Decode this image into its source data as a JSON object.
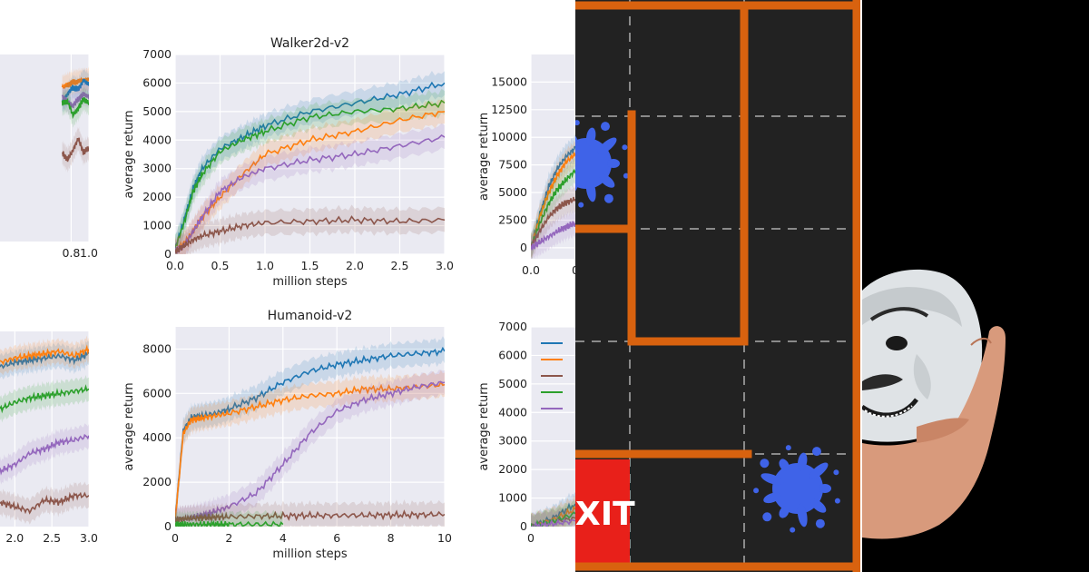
{
  "chart_data": [
    {
      "type": "line",
      "title": "",
      "xlabel": "",
      "ylabel": "",
      "xlim": [
        0,
        1.0
      ],
      "ylim": [
        -1000,
        7000
      ],
      "x_tick_labels": [
        "0.8",
        "1.0"
      ],
      "y_tick_labels": [],
      "grid": true,
      "series": [
        {
          "color": "#ff7f0e",
          "values": [
            5600,
            5700,
            5800,
            5850,
            5900,
            5900
          ]
        },
        {
          "color": "#1f77b4",
          "values": [
            5000,
            5300,
            5600,
            5500,
            5900,
            5700
          ]
        },
        {
          "color": "#9467bd",
          "values": [
            5200,
            5000,
            4800,
            5100,
            5300,
            5200
          ]
        },
        {
          "color": "#2ca02c",
          "values": [
            4900,
            5000,
            4400,
            4700,
            5100,
            4900
          ]
        },
        {
          "color": "#8c564b",
          "values": [
            2800,
            2500,
            2900,
            3400,
            2800,
            3000
          ]
        }
      ],
      "x": [
        0.7,
        0.76,
        0.82,
        0.88,
        0.94,
        1.0
      ]
    },
    {
      "type": "line",
      "title": "Walker2d-v2",
      "xlabel": "million steps",
      "ylabel": "average return",
      "xlim": [
        0,
        3.0
      ],
      "ylim": [
        0,
        7000
      ],
      "x_tick_labels": [
        "0.0",
        "0.5",
        "1.0",
        "1.5",
        "2.0",
        "2.5",
        "3.0"
      ],
      "y_tick_labels": [
        "0",
        "1000",
        "2000",
        "3000",
        "4000",
        "5000",
        "6000",
        "7000"
      ],
      "grid": true,
      "x": [
        0,
        0.1,
        0.2,
        0.3,
        0.5,
        0.75,
        1.0,
        1.5,
        2.0,
        2.5,
        3.0
      ],
      "series": [
        {
          "color": "#1f77b4",
          "values": [
            200,
            1200,
            2300,
            3000,
            3700,
            4100,
            4500,
            5000,
            5300,
            5600,
            6000
          ]
        },
        {
          "color": "#2ca02c",
          "values": [
            200,
            1100,
            2200,
            2800,
            3600,
            4000,
            4300,
            4800,
            5000,
            5100,
            5300
          ]
        },
        {
          "color": "#ff7f0e",
          "values": [
            100,
            400,
            800,
            1300,
            2000,
            2800,
            3500,
            4000,
            4300,
            4700,
            5000
          ]
        },
        {
          "color": "#9467bd",
          "values": [
            100,
            300,
            800,
            1300,
            2200,
            2700,
            3000,
            3300,
            3500,
            3800,
            4100
          ]
        },
        {
          "color": "#8c564b",
          "values": [
            100,
            300,
            500,
            650,
            800,
            1000,
            1100,
            1150,
            1200,
            1150,
            1200
          ]
        }
      ]
    },
    {
      "type": "line",
      "title": "",
      "xlabel": "",
      "ylabel": "average return",
      "xlim": [
        0,
        0.05
      ],
      "ylim": [
        -1000,
        17500
      ],
      "x_tick_labels": [
        "0.0",
        "0"
      ],
      "y_tick_labels": [
        "0",
        "2500",
        "5000",
        "7500",
        "10000",
        "12500",
        "15000"
      ],
      "grid": true,
      "x": [
        0,
        0.01,
        0.02,
        0.03,
        0.04,
        0.05
      ],
      "series": [
        {
          "color": "#1f77b4",
          "values": [
            0,
            3000,
            5500,
            7200,
            8300,
            9000
          ]
        },
        {
          "color": "#ff7f0e",
          "values": [
            0,
            2800,
            5000,
            6600,
            7800,
            8500
          ]
        },
        {
          "color": "#2ca02c",
          "values": [
            0,
            2200,
            4000,
            5300,
            6200,
            7000
          ]
        },
        {
          "color": "#8c564b",
          "values": [
            0,
            1500,
            2800,
            3600,
            4100,
            4400
          ]
        },
        {
          "color": "#9467bd",
          "values": [
            0,
            500,
            1000,
            1500,
            1900,
            2200
          ]
        }
      ]
    },
    {
      "type": "line",
      "title": "",
      "xlabel": "",
      "ylabel": "",
      "xlim": [
        1.8,
        3.0
      ],
      "ylim": [
        0,
        8800
      ],
      "x_tick_labels": [
        "2.0",
        "2.5",
        "3.0"
      ],
      "y_tick_labels": [],
      "grid": true,
      "x": [
        1.8,
        2.0,
        2.2,
        2.4,
        2.6,
        2.8,
        3.0
      ],
      "series": [
        {
          "color": "#1f77b4",
          "values": [
            7200,
            7400,
            7500,
            7600,
            7700,
            7500,
            7800
          ]
        },
        {
          "color": "#ff7f0e",
          "values": [
            7400,
            7600,
            7700,
            7800,
            7900,
            7700,
            8000
          ]
        },
        {
          "color": "#2ca02c",
          "values": [
            5300,
            5600,
            5800,
            5900,
            6000,
            6100,
            6200
          ]
        },
        {
          "color": "#9467bd",
          "values": [
            2500,
            2800,
            3300,
            3500,
            3800,
            3900,
            4100
          ]
        },
        {
          "color": "#8c564b",
          "values": [
            1100,
            900,
            700,
            1200,
            1100,
            1400,
            1400
          ]
        }
      ]
    },
    {
      "type": "line",
      "title": "Humanoid-v2",
      "xlabel": "million steps",
      "ylabel": "average return",
      "xlim": [
        0,
        10
      ],
      "ylim": [
        0,
        9000
      ],
      "x_tick_labels": [
        "0",
        "2",
        "4",
        "6",
        "8",
        "10"
      ],
      "y_tick_labels": [
        "0",
        "2000",
        "4000",
        "6000",
        "8000"
      ],
      "grid": true,
      "x": [
        0,
        0.3,
        0.6,
        1.0,
        1.5,
        2,
        3,
        4,
        5,
        6,
        7,
        8,
        9,
        10
      ],
      "series": [
        {
          "color": "#1f77b4",
          "values": [
            300,
            4300,
            4900,
            5000,
            5100,
            5300,
            5800,
            6500,
            7000,
            7300,
            7500,
            7700,
            7800,
            7900
          ]
        },
        {
          "color": "#ff7f0e",
          "values": [
            300,
            4200,
            4800,
            4900,
            5000,
            5100,
            5400,
            5700,
            5900,
            6000,
            6200,
            6200,
            6300,
            6400
          ]
        },
        {
          "color": "#9467bd",
          "values": [
            300,
            350,
            400,
            500,
            700,
            900,
            1500,
            2800,
            4200,
            5200,
            5700,
            6000,
            6300,
            6500
          ]
        },
        {
          "color": "#8c564b",
          "values": [
            300,
            350,
            380,
            400,
            420,
            440,
            470,
            480,
            500,
            500,
            510,
            520,
            530,
            550
          ]
        },
        {
          "color": "#2ca02c",
          "values": [
            100,
            100,
            100,
            100,
            100,
            100,
            100,
            100,
            null,
            null,
            null,
            null,
            null,
            null
          ]
        }
      ]
    },
    {
      "type": "line",
      "title": "",
      "xlabel": "",
      "ylabel": "average return",
      "xlim": [
        0,
        1
      ],
      "ylim": [
        0,
        7000
      ],
      "x_tick_labels": [
        "0"
      ],
      "y_tick_labels": [
        "0",
        "1000",
        "2000",
        "3000",
        "4000",
        "5000",
        "6000",
        "7000"
      ],
      "grid": true,
      "x": [
        0,
        0.5,
        1
      ],
      "series": [
        {
          "color": "#1f77b4",
          "values": [
            0,
            300,
            800
          ]
        },
        {
          "color": "#ff7f0e",
          "values": [
            0,
            250,
            600
          ]
        },
        {
          "color": "#8c564b",
          "values": [
            0,
            150,
            300
          ]
        },
        {
          "color": "#2ca02c",
          "values": [
            0,
            200,
            450
          ]
        },
        {
          "color": "#9467bd",
          "values": [
            0,
            100,
            200
          ]
        }
      ],
      "legend": {
        "placement": "upper-left",
        "colors": [
          "#1f77b4",
          "#ff7f0e",
          "#8c564b",
          "#2ca02c",
          "#9467bd"
        ]
      }
    }
  ],
  "maze": {
    "exit_label": "XIT",
    "colors": {
      "wall": "#d8620f",
      "floor": "#222222",
      "exit": "#e8201a",
      "splat": "#3f63e8",
      "grid": "#8a8a8a"
    }
  },
  "mask_image": {
    "icon": "guy-fawkes-mask-in-hand-icon",
    "colors": {
      "mask": "#dfe3e6",
      "hand": "#d89a7c",
      "background": "#000000"
    }
  }
}
